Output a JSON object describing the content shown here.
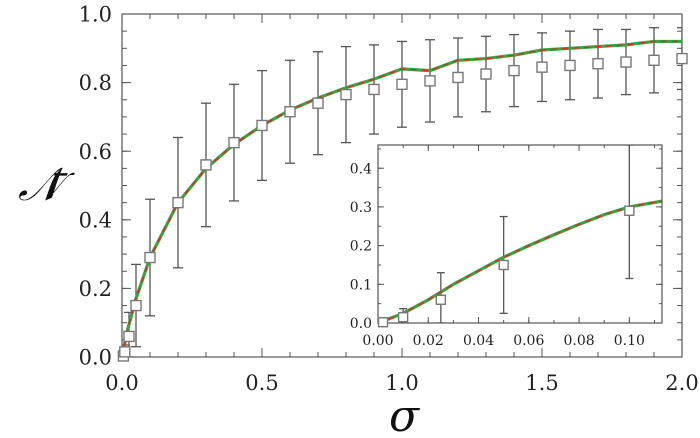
{
  "chart_data": [
    {
      "type": "scatter",
      "panel": "main",
      "xlabel": "σ",
      "ylabel": "𝒩̄",
      "xlim": [
        0.0,
        2.0
      ],
      "ylim": [
        0.0,
        1.0
      ],
      "xticks": [
        "0.0",
        "0.5",
        "1.0",
        "1.5",
        "2.0"
      ],
      "yticks": [
        "0.0",
        "0.2",
        "0.4",
        "0.6",
        "0.8",
        "1.0"
      ],
      "grid": false,
      "series": [
        {
          "kind": "points_with_error_bars",
          "marker": "open-square",
          "points": [
            {
              "x": 0.005,
              "y": 0.003,
              "err": 0.005
            },
            {
              "x": 0.01,
              "y": 0.015,
              "err": 0.02
            },
            {
              "x": 0.025,
              "y": 0.06,
              "err": 0.07
            },
            {
              "x": 0.05,
              "y": 0.15,
              "err": 0.12
            },
            {
              "x": 0.1,
              "y": 0.29,
              "err": 0.17
            },
            {
              "x": 0.2,
              "y": 0.45,
              "err": 0.19
            },
            {
              "x": 0.3,
              "y": 0.56,
              "err": 0.18
            },
            {
              "x": 0.4,
              "y": 0.625,
              "err": 0.17
            },
            {
              "x": 0.5,
              "y": 0.675,
              "err": 0.16
            },
            {
              "x": 0.6,
              "y": 0.715,
              "err": 0.15
            },
            {
              "x": 0.7,
              "y": 0.74,
              "err": 0.15
            },
            {
              "x": 0.8,
              "y": 0.765,
              "err": 0.14
            },
            {
              "x": 0.9,
              "y": 0.78,
              "err": 0.13
            },
            {
              "x": 1.0,
              "y": 0.795,
              "err": 0.125
            },
            {
              "x": 1.1,
              "y": 0.805,
              "err": 0.12
            },
            {
              "x": 1.2,
              "y": 0.815,
              "err": 0.115
            },
            {
              "x": 1.3,
              "y": 0.825,
              "err": 0.11
            },
            {
              "x": 1.4,
              "y": 0.835,
              "err": 0.105
            },
            {
              "x": 1.5,
              "y": 0.845,
              "err": 0.1
            },
            {
              "x": 1.6,
              "y": 0.85,
              "err": 0.1
            },
            {
              "x": 1.7,
              "y": 0.855,
              "err": 0.1
            },
            {
              "x": 1.8,
              "y": 0.86,
              "err": 0.095
            },
            {
              "x": 1.9,
              "y": 0.865,
              "err": 0.095
            },
            {
              "x": 2.0,
              "y": 0.87,
              "err": 0.09
            }
          ]
        },
        {
          "kind": "line",
          "style": "solid",
          "color": "#3aa53a",
          "x": [
            0.0,
            0.01,
            0.02,
            0.05,
            0.1,
            0.2,
            0.3,
            0.4,
            0.5,
            0.6,
            0.7,
            0.8,
            0.9,
            1.0,
            1.1,
            1.2,
            1.3,
            1.4,
            1.5,
            1.6,
            1.7,
            1.8,
            1.9,
            2.0
          ],
          "y": [
            0.0,
            0.04,
            0.08,
            0.17,
            0.29,
            0.45,
            0.55,
            0.62,
            0.675,
            0.72,
            0.755,
            0.785,
            0.81,
            0.84,
            0.835,
            0.865,
            0.87,
            0.88,
            0.895,
            0.9,
            0.905,
            0.91,
            0.92,
            0.92
          ]
        },
        {
          "kind": "line",
          "style": "dashed",
          "color": "#cc3333",
          "x": [
            0.0,
            0.01,
            0.02,
            0.05,
            0.1,
            0.2,
            0.3,
            0.4,
            0.5,
            0.6,
            0.7,
            0.8,
            0.9,
            1.0,
            1.1,
            1.2,
            1.3,
            1.4,
            1.5,
            1.6,
            1.7,
            1.8,
            1.9,
            2.0
          ],
          "y": [
            0.0,
            0.04,
            0.08,
            0.17,
            0.29,
            0.45,
            0.55,
            0.62,
            0.675,
            0.72,
            0.755,
            0.785,
            0.81,
            0.84,
            0.835,
            0.865,
            0.87,
            0.88,
            0.895,
            0.9,
            0.905,
            0.91,
            0.92,
            0.92
          ]
        }
      ]
    },
    {
      "type": "scatter",
      "panel": "inset",
      "xlim": [
        0.0,
        0.113
      ],
      "ylim": [
        0.0,
        0.46
      ],
      "xticks": [
        "0.00",
        "0.02",
        "0.04",
        "0.06",
        "0.08",
        "0.10"
      ],
      "yticks": [
        "0.0",
        "0.1",
        "0.2",
        "0.3",
        "0.4"
      ],
      "grid": false,
      "series": [
        {
          "kind": "points_with_error_bars",
          "marker": "open-square",
          "points": [
            {
              "x": 0.002,
              "y": 0.002,
              "err": 0.005
            },
            {
              "x": 0.01,
              "y": 0.015,
              "err": 0.022
            },
            {
              "x": 0.025,
              "y": 0.06,
              "err": 0.07
            },
            {
              "x": 0.05,
              "y": 0.15,
              "err": 0.125
            },
            {
              "x": 0.1,
              "y": 0.29,
              "err": 0.175
            }
          ]
        },
        {
          "kind": "line",
          "style": "solid",
          "color": "#3aa53a",
          "x": [
            0.0,
            0.01,
            0.02,
            0.03,
            0.04,
            0.05,
            0.06,
            0.07,
            0.08,
            0.09,
            0.1,
            0.113
          ],
          "y": [
            0.0,
            0.025,
            0.06,
            0.1,
            0.135,
            0.17,
            0.2,
            0.228,
            0.255,
            0.28,
            0.3,
            0.315
          ]
        },
        {
          "kind": "line",
          "style": "dashed",
          "color": "#cc3333",
          "x": [
            0.0,
            0.01,
            0.02,
            0.03,
            0.04,
            0.05,
            0.06,
            0.07,
            0.08,
            0.09,
            0.1,
            0.113
          ],
          "y": [
            0.0,
            0.025,
            0.06,
            0.1,
            0.135,
            0.17,
            0.2,
            0.228,
            0.255,
            0.28,
            0.3,
            0.315
          ]
        }
      ]
    }
  ]
}
